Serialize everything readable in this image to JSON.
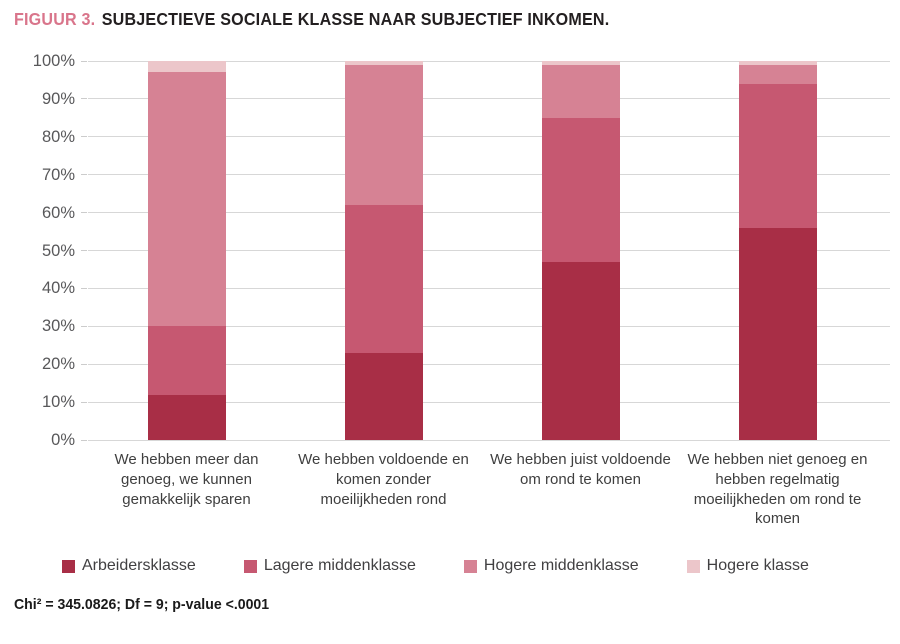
{
  "title": {
    "prefix": "FIGUUR 3.",
    "text": "SUBJECTIEVE SOCIALE KLASSE NAAR SUBJECTIEF INKOMEN."
  },
  "chart_data": {
    "type": "bar",
    "stacked": true,
    "stacking": "percent",
    "title": "FIGUUR 3. SUBJECTIEVE SOCIALE KLASSE NAAR SUBJECTIEF INKOMEN.",
    "categories": [
      "We hebben meer dan genoeg, we kunnen gemakkelijk sparen",
      "We hebben voldoende en komen zonder moeilijkheden rond",
      "We hebben juist voldoende om rond te komen",
      "We hebben niet genoeg en hebben regelmatig moeilijkheden om rond te komen"
    ],
    "series": [
      {
        "name": "Arbeidersklasse",
        "color": "#a82e46",
        "values": [
          12,
          23,
          47,
          56
        ]
      },
      {
        "name": "Lagere middenklasse",
        "color": "#c65871",
        "values": [
          18,
          39,
          38,
          38
        ]
      },
      {
        "name": "Hogere middenklasse",
        "color": "#d68294",
        "values": [
          67,
          37,
          14,
          5
        ]
      },
      {
        "name": "Hogere klasse",
        "color": "#ecc6ca",
        "values": [
          3,
          1,
          1,
          1
        ]
      }
    ],
    "xlabel": "",
    "ylabel": "",
    "ylim": [
      0,
      100
    ],
    "yticks": [
      "0%",
      "10%",
      "20%",
      "30%",
      "40%",
      "50%",
      "60%",
      "70%",
      "80%",
      "90%",
      "100%"
    ],
    "grid": true,
    "legend_position": "bottom"
  },
  "footnote": "Chi² = 345.0826; Df = 9; p-value <.0001",
  "colors": {
    "title_accent": "#d9758b",
    "title_text": "#231f20",
    "gridline": "#d7d7d7",
    "axis_label": "#58585a",
    "body_text": "#3f3f3f"
  }
}
